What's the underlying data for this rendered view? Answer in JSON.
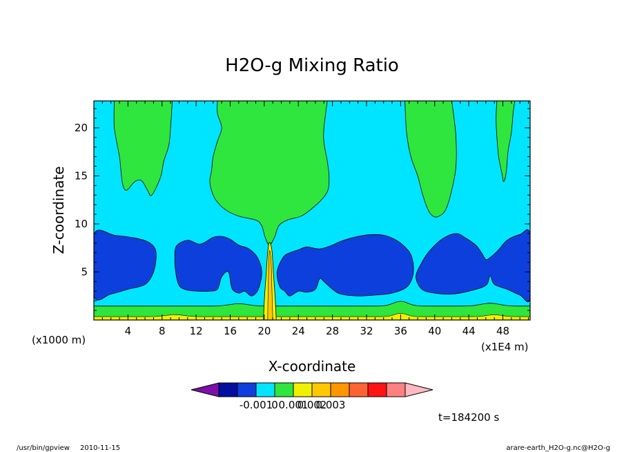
{
  "chart_data": {
    "type": "contour",
    "title": "H2O-g Mixing Ratio",
    "xlabel": "X-coordinate",
    "ylabel": "Z-coordinate",
    "x_unit": "(x1E4 m)",
    "y_unit": "(x1000 m)",
    "xlim": [
      0,
      51.2
    ],
    "ylim": [
      0,
      22.8
    ],
    "x_ticks": [
      4,
      8,
      12,
      16,
      20,
      24,
      28,
      32,
      36,
      40,
      44,
      48
    ],
    "y_ticks": [
      5,
      10,
      15,
      20
    ],
    "time_label": "t=184200 s",
    "colorbar": {
      "labels": [
        {
          "text": "-0.001",
          "value": -0.001
        },
        {
          "text": "0",
          "value": 0
        },
        {
          "text": "0.001",
          "value": 0.001
        },
        {
          "text": "0.002",
          "value": 0.002
        },
        {
          "text": "0.003",
          "value": 0.003
        }
      ],
      "colors": [
        "#7b0fa8",
        "#000f9f",
        "#0d3fdc",
        "#00e5ff",
        "#2ee63d",
        "#f0f000",
        "#ffc800",
        "#ff9600",
        "#ff6432",
        "#ff1414",
        "#ff8080",
        "#ffb9c0"
      ]
    },
    "contours": {
      "blue": [
        [
          [
            0,
            8.9
          ],
          [
            2.5,
            8.8
          ],
          [
            5,
            8.5
          ],
          [
            6.6,
            8
          ],
          [
            7.3,
            7
          ],
          [
            7,
            5
          ],
          [
            6,
            3.7
          ],
          [
            4,
            3.2
          ],
          [
            2,
            2.7
          ],
          [
            0,
            2.5
          ]
        ],
        [
          [
            9.7,
            7.7
          ],
          [
            11,
            8.3
          ],
          [
            12.5,
            7.9
          ],
          [
            14,
            8.6
          ],
          [
            15,
            8.7
          ],
          [
            16,
            8.4
          ],
          [
            17,
            7.8
          ],
          [
            18.2,
            7.4
          ],
          [
            19.2,
            6.5
          ],
          [
            19.7,
            5
          ],
          [
            19.3,
            3.2
          ],
          [
            18.5,
            2.5
          ],
          [
            17.7,
            3
          ],
          [
            17,
            2.8
          ],
          [
            16.2,
            3.3
          ],
          [
            15.8,
            5
          ],
          [
            15,
            4.5
          ],
          [
            14.5,
            3.2
          ],
          [
            13.5,
            3
          ],
          [
            12.5,
            3
          ],
          [
            11,
            3.1
          ],
          [
            10,
            3.6
          ],
          [
            9.6,
            5
          ],
          [
            9.5,
            6.5
          ]
        ],
        [
          [
            22.2,
            6.5
          ],
          [
            23,
            7
          ],
          [
            24,
            7.3
          ],
          [
            25,
            7.6
          ],
          [
            26.5,
            7.4
          ],
          [
            28,
            7.8
          ],
          [
            29,
            8.2
          ],
          [
            31,
            8.7
          ],
          [
            33,
            8.9
          ],
          [
            34.5,
            8.7
          ],
          [
            36,
            8
          ],
          [
            37.2,
            6.8
          ],
          [
            37.5,
            5
          ],
          [
            36.8,
            3.5
          ],
          [
            35,
            2.8
          ],
          [
            33,
            2.6
          ],
          [
            31,
            2.5
          ],
          [
            29,
            2.7
          ],
          [
            28,
            3.2
          ],
          [
            27,
            4
          ],
          [
            26.5,
            4.3
          ],
          [
            26,
            3.2
          ],
          [
            25,
            2.9
          ],
          [
            24,
            3
          ],
          [
            23,
            2.5
          ],
          [
            22.4,
            3
          ],
          [
            21.8,
            3.5
          ],
          [
            21.5,
            5
          ]
        ],
        [
          [
            37.8,
            4.5
          ],
          [
            38.5,
            6
          ],
          [
            39.5,
            7.3
          ],
          [
            41,
            8.5
          ],
          [
            42.5,
            9
          ],
          [
            43.5,
            8.6
          ],
          [
            44.8,
            7.8
          ],
          [
            45.5,
            7
          ],
          [
            46,
            6.3
          ],
          [
            46.5,
            6.5
          ],
          [
            47.5,
            7.3
          ],
          [
            48.5,
            8.3
          ],
          [
            50,
            8.9
          ],
          [
            51.2,
            8.9
          ],
          [
            51.2,
            2.3
          ],
          [
            50,
            2.6
          ],
          [
            48.5,
            3.2
          ],
          [
            47,
            3.7
          ],
          [
            46.5,
            4.6
          ],
          [
            46,
            3.6
          ],
          [
            44,
            3
          ],
          [
            42,
            2.7
          ],
          [
            40,
            2.8
          ],
          [
            38.5,
            3.2
          ]
        ]
      ],
      "green": [
        [
          [
            2.4,
            22.8
          ],
          [
            2.4,
            20
          ],
          [
            3,
            17
          ],
          [
            3.3,
            14.5
          ],
          [
            3.6,
            13.6
          ],
          [
            4,
            13.6
          ],
          [
            4.8,
            14.4
          ],
          [
            5.6,
            14.5
          ],
          [
            6.3,
            13.5
          ],
          [
            6.8,
            13
          ],
          [
            7.8,
            14.8
          ],
          [
            8.2,
            16.5
          ],
          [
            8.8,
            18.2
          ],
          [
            9,
            20
          ],
          [
            9.2,
            22.8
          ]
        ],
        [
          [
            14.5,
            22.8
          ],
          [
            14.5,
            21.5
          ],
          [
            15,
            20
          ],
          [
            14.5,
            18.6
          ],
          [
            14,
            17
          ],
          [
            13.8,
            15.5
          ],
          [
            13.6,
            14.5
          ],
          [
            13.8,
            13.5
          ],
          [
            14.3,
            12.5
          ],
          [
            15.4,
            11.5
          ],
          [
            17,
            10.8
          ],
          [
            19,
            10.4
          ],
          [
            19.7,
            9.8
          ],
          [
            20.1,
            8.6
          ],
          [
            20.6,
            7.8
          ],
          [
            21.2,
            8.6
          ],
          [
            21.7,
            9.8
          ],
          [
            22.7,
            10.4
          ],
          [
            24.3,
            10.8
          ],
          [
            25.6,
            11.6
          ],
          [
            26.8,
            12.6
          ],
          [
            27.5,
            13.6
          ],
          [
            27.6,
            15
          ],
          [
            27.4,
            16.5
          ],
          [
            27,
            18.5
          ],
          [
            27,
            20
          ],
          [
            27.4,
            22.8
          ]
        ],
        [
          [
            36.5,
            22.8
          ],
          [
            36.7,
            19.5
          ],
          [
            37.2,
            17
          ],
          [
            38,
            15
          ],
          [
            38.6,
            13
          ],
          [
            39.2,
            11.5
          ],
          [
            39.8,
            10.8
          ],
          [
            40.5,
            10.8
          ],
          [
            41.3,
            11.5
          ],
          [
            42,
            13.5
          ],
          [
            42.5,
            16
          ],
          [
            42.5,
            19
          ],
          [
            42.2,
            21.5
          ],
          [
            42,
            22.8
          ]
        ],
        [
          [
            47.3,
            22.8
          ],
          [
            47.2,
            21
          ],
          [
            47.3,
            19
          ],
          [
            47.5,
            17
          ],
          [
            47.9,
            15.2
          ],
          [
            48.1,
            14.4
          ],
          [
            48.4,
            15.4
          ],
          [
            48.6,
            17.5
          ],
          [
            49,
            19.5
          ],
          [
            49.2,
            21.5
          ],
          [
            49.4,
            22.8
          ]
        ]
      ],
      "yellow": [
        [
          [
            19.9,
            0
          ],
          [
            20,
            2
          ],
          [
            20.2,
            4.5
          ],
          [
            20.4,
            7
          ],
          [
            20.6,
            8.1
          ],
          [
            20.9,
            7.2
          ],
          [
            21.1,
            4.5
          ],
          [
            21.3,
            2
          ],
          [
            21.4,
            0
          ]
        ]
      ]
    }
  },
  "footer": {
    "left": "/usr/bin/gpview",
    "date": "2010-11-15",
    "right": "arare-earth_H2O-g.nc@H2O-g"
  }
}
